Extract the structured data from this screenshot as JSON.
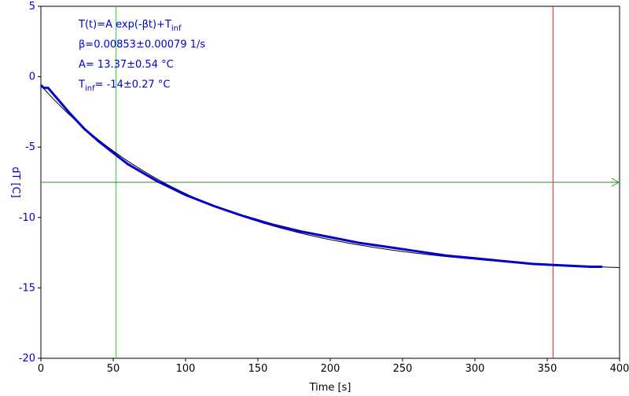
{
  "chart_data": {
    "type": "line",
    "xlabel": "Time [s]",
    "ylabel": "dT [C]",
    "xlim": [
      0,
      400
    ],
    "ylim": [
      -20,
      5
    ],
    "xticks": [
      0,
      50,
      100,
      150,
      200,
      250,
      300,
      350,
      400
    ],
    "yticks": [
      5,
      0,
      -5,
      -10,
      -15,
      -20
    ],
    "grid": false,
    "annotations": [
      {
        "base": "T(t)=A exp(-βt)+T",
        "sub": "inf",
        "rest": ""
      },
      {
        "base": "β=0.00853±0.00079 1/s",
        "sub": "",
        "rest": ""
      },
      {
        "base": "A= 13.37±0.54 °C",
        "sub": "",
        "rest": ""
      },
      {
        "base": "T",
        "sub": "inf",
        "rest": "= -14±0.27 °C"
      }
    ],
    "fit": {
      "A": 13.37,
      "beta": 0.00853,
      "T_inf": -14,
      "x_range": [
        0,
        400
      ]
    },
    "series": [
      {
        "color": "#0000cc",
        "x": [
          0,
          2,
          5,
          10,
          15,
          20,
          30,
          40,
          50,
          60,
          70,
          80,
          90,
          100,
          120,
          140,
          160,
          180,
          200,
          220,
          240,
          260,
          280,
          300,
          320,
          340,
          360,
          380,
          388
        ],
        "y": [
          -0.6,
          -0.8,
          -0.8,
          -1.4,
          -2.0,
          -2.6,
          -3.7,
          -4.6,
          -5.4,
          -6.2,
          -6.8,
          -7.4,
          -7.9,
          -8.4,
          -9.2,
          -9.9,
          -10.5,
          -11.0,
          -11.4,
          -11.8,
          -12.1,
          -12.4,
          -12.7,
          -12.9,
          -13.1,
          -13.3,
          -13.4,
          -13.5,
          -13.5
        ]
      }
    ],
    "markers": {
      "vertical_green": 52,
      "vertical_red": 354,
      "horizontal_green": -7.5
    }
  }
}
